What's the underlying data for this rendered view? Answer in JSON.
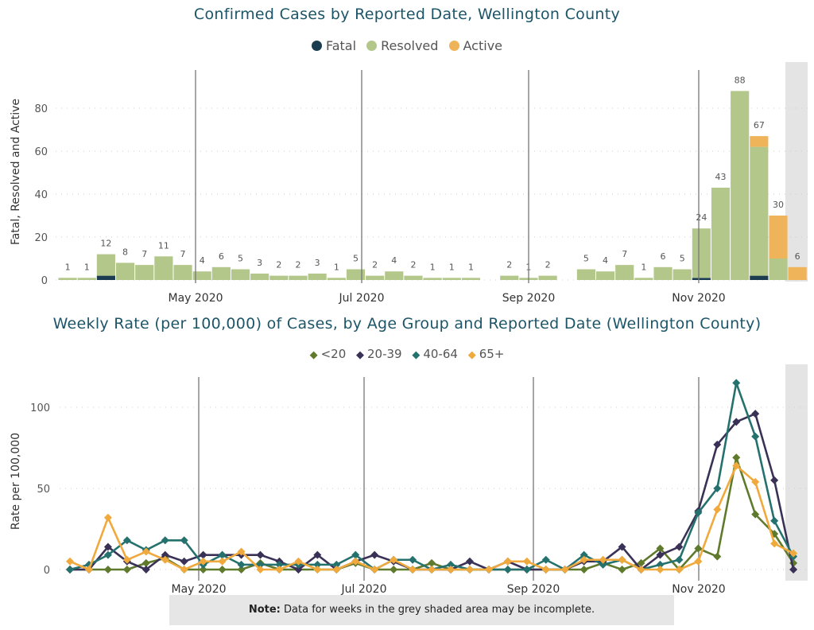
{
  "chart_data": [
    {
      "type": "bar",
      "stacked": true,
      "title": "Confirmed Cases by Reported Date, Wellington County",
      "ylabel": "Fatal, Resolved and Active",
      "xlabel": "",
      "ylim": [
        0,
        95
      ],
      "yticks": [
        "0",
        "20",
        "40",
        "60",
        "80"
      ],
      "ytick_values": [
        0,
        20,
        40,
        60,
        80
      ],
      "xticks": [
        "May 2020",
        "Jul 2020",
        "Sep 2020",
        "Nov 2020"
      ],
      "xtick_dates": [
        "2020-05-01",
        "2020-07-01",
        "2020-09-01",
        "2020-11-01"
      ],
      "grid": true,
      "legend_position": "top-center",
      "categories": [
        "2020-03-11",
        "2020-03-18",
        "2020-03-25",
        "2020-04-01",
        "2020-04-08",
        "2020-04-15",
        "2020-04-22",
        "2020-04-29",
        "2020-05-06",
        "2020-05-13",
        "2020-05-20",
        "2020-05-27",
        "2020-06-03",
        "2020-06-10",
        "2020-06-17",
        "2020-06-24",
        "2020-07-01",
        "2020-07-08",
        "2020-07-15",
        "2020-07-22",
        "2020-07-29",
        "2020-08-05",
        "2020-08-12",
        "2020-08-19",
        "2020-08-26",
        "2020-09-02",
        "2020-09-09",
        "2020-09-16",
        "2020-09-23",
        "2020-09-30",
        "2020-10-07",
        "2020-10-14",
        "2020-10-21",
        "2020-10-28",
        "2020-11-04",
        "2020-11-11",
        "2020-11-18",
        "2020-11-25",
        "2020-12-02"
      ],
      "totals": [
        1,
        1,
        12,
        8,
        7,
        11,
        7,
        4,
        6,
        5,
        3,
        2,
        2,
        3,
        1,
        5,
        2,
        4,
        2,
        1,
        1,
        1,
        0,
        2,
        1,
        2,
        0,
        5,
        4,
        7,
        1,
        6,
        5,
        24,
        43,
        88,
        67,
        30,
        6
      ],
      "series": [
        {
          "name": "Fatal",
          "color": "#1b3d4f",
          "values": [
            0,
            0,
            2,
            0,
            0,
            0,
            0,
            0,
            0,
            0,
            0,
            0,
            0,
            0,
            0,
            0,
            0,
            0,
            0,
            0,
            0,
            0,
            0,
            0,
            0,
            0,
            0,
            0,
            0,
            0,
            0,
            0,
            0,
            1,
            0,
            0,
            2,
            0,
            0
          ]
        },
        {
          "name": "Resolved",
          "color": "#b4c78b",
          "values": [
            1,
            1,
            10,
            8,
            7,
            11,
            7,
            4,
            6,
            5,
            3,
            2,
            2,
            3,
            1,
            5,
            2,
            4,
            2,
            1,
            1,
            1,
            0,
            2,
            1,
            2,
            0,
            5,
            4,
            7,
            1,
            6,
            5,
            23,
            43,
            88,
            60,
            10,
            0
          ]
        },
        {
          "name": "Active",
          "color": "#efb45a",
          "values": [
            0,
            0,
            0,
            0,
            0,
            0,
            0,
            0,
            0,
            0,
            0,
            0,
            0,
            0,
            0,
            0,
            0,
            0,
            0,
            0,
            0,
            0,
            0,
            0,
            0,
            0,
            0,
            0,
            0,
            0,
            0,
            0,
            0,
            0,
            0,
            0,
            5,
            20,
            6
          ]
        }
      ],
      "incomplete_from_index": 38
    },
    {
      "type": "line",
      "title": "Weekly Rate (per 100,000) of Cases, by Age Group and Reported Date (Wellington County)",
      "ylabel": "Rate per 100,000",
      "xlabel": "",
      "ylim": [
        0,
        125
      ],
      "yticks": [
        "0",
        "50",
        "100"
      ],
      "ytick_values": [
        0,
        50,
        100
      ],
      "xticks": [
        "May 2020",
        "Jul 2020",
        "Sep 2020",
        "Nov 2020"
      ],
      "grid": true,
      "legend_position": "top-center",
      "series": [
        {
          "name": "<20",
          "color": "#5f7a2c",
          "values": [
            0,
            0,
            0,
            0,
            4,
            7,
            0,
            0,
            0,
            0,
            4,
            0,
            0,
            0,
            0,
            4,
            0,
            0,
            0,
            4,
            0,
            0,
            0,
            0,
            0,
            0,
            0,
            0,
            4,
            0,
            4,
            13,
            0,
            13,
            8,
            69,
            34,
            22,
            4
          ]
        },
        {
          "name": "20-39",
          "color": "#3a3157",
          "values": [
            0,
            0,
            14,
            5,
            0,
            9,
            5,
            9,
            9,
            9,
            9,
            5,
            0,
            9,
            0,
            5,
            9,
            5,
            0,
            0,
            0,
            5,
            0,
            5,
            0,
            0,
            0,
            5,
            5,
            14,
            0,
            9,
            14,
            36,
            77,
            91,
            96,
            55,
            0
          ]
        },
        {
          "name": "40-64",
          "color": "#25716e",
          "values": [
            0,
            3,
            9,
            18,
            12,
            18,
            18,
            3,
            9,
            3,
            3,
            3,
            3,
            3,
            3,
            9,
            0,
            6,
            6,
            0,
            3,
            0,
            0,
            0,
            0,
            6,
            0,
            9,
            3,
            6,
            0,
            3,
            6,
            35,
            50,
            115,
            82,
            30,
            8
          ]
        },
        {
          "name": "65+",
          "color": "#f0a93c",
          "values": [
            5,
            0,
            32,
            6,
            11,
            6,
            0,
            5,
            5,
            11,
            0,
            0,
            5,
            0,
            0,
            5,
            0,
            6,
            0,
            0,
            0,
            0,
            0,
            5,
            5,
            0,
            0,
            6,
            6,
            6,
            0,
            0,
            0,
            5,
            37,
            64,
            54,
            16,
            10
          ]
        }
      ],
      "incomplete_from_index": 38
    }
  ],
  "top": {
    "title": "Confirmed Cases by Reported Date, Wellington County",
    "legend": [
      "Fatal",
      "Resolved",
      "Active"
    ]
  },
  "bottom": {
    "title": "Weekly Rate (per 100,000) of Cases, by Age Group and Reported Date (Wellington County)",
    "legend": [
      "<20",
      "20-39",
      "40-64",
      "65+"
    ]
  },
  "note": {
    "label": "Note:",
    "text": " Data for weeks in the grey shaded area may be incomplete."
  }
}
